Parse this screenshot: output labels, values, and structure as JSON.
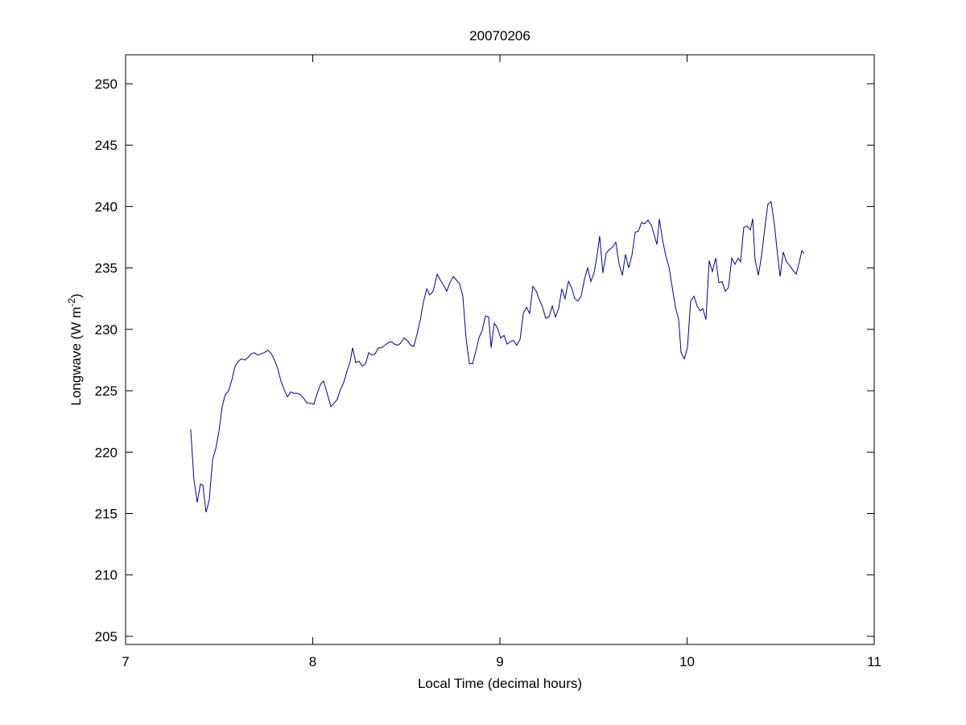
{
  "chart_data": {
    "type": "line",
    "title": "20070206",
    "xlabel": "Local Time (decimal hours)",
    "ylabel": {
      "text": "Longwave (W m",
      "superscript": "-2",
      "suffix": ")"
    },
    "xlim": [
      7,
      11
    ],
    "xticks": [
      7,
      8,
      9,
      10,
      11
    ],
    "ylim": [
      204.34,
      252.36
    ],
    "yticks": [
      205,
      210,
      215,
      220,
      225,
      230,
      235,
      240,
      245,
      250
    ],
    "grid": false,
    "series": [
      {
        "color": "#0000a0",
        "x": [
          7.348,
          7.365,
          7.383,
          7.4,
          7.413,
          7.43,
          7.447,
          7.465,
          7.482,
          7.499,
          7.516,
          7.533,
          7.551,
          7.568,
          7.585,
          7.602,
          7.619,
          7.637,
          7.654,
          7.671,
          7.688,
          7.705,
          7.723,
          7.74,
          7.761,
          7.779,
          7.796,
          7.813,
          7.83,
          7.847,
          7.865,
          7.882,
          7.899,
          7.916,
          7.933,
          7.951,
          7.968,
          7.989,
          8.006,
          8.024,
          8.041,
          8.058,
          8.075,
          8.097,
          8.114,
          8.131,
          8.148,
          8.166,
          8.183,
          8.2,
          8.213,
          8.23,
          8.247,
          8.265,
          8.282,
          8.299,
          8.316,
          8.333,
          8.351,
          8.368,
          8.385,
          8.402,
          8.419,
          8.437,
          8.454,
          8.471,
          8.488,
          8.505,
          8.523,
          8.54,
          8.557,
          8.574,
          8.591,
          8.609,
          8.626,
          8.643,
          8.665,
          8.682,
          8.699,
          8.716,
          8.733,
          8.751,
          8.768,
          8.785,
          8.802,
          8.819,
          8.837,
          8.854,
          8.871,
          8.888,
          8.905,
          8.923,
          8.94,
          8.953,
          8.97,
          8.987,
          9.004,
          9.022,
          9.039,
          9.056,
          9.073,
          9.09,
          9.108,
          9.125,
          9.142,
          9.159,
          9.176,
          9.194,
          9.211,
          9.228,
          9.245,
          9.262,
          9.28,
          9.297,
          9.314,
          9.331,
          9.348,
          9.366,
          9.383,
          9.4,
          9.417,
          9.434,
          9.452,
          9.469,
          9.486,
          9.503,
          9.52,
          9.533,
          9.55,
          9.568,
          9.585,
          9.602,
          9.619,
          9.637,
          9.654,
          9.671,
          9.688,
          9.705,
          9.723,
          9.74,
          9.757,
          9.774,
          9.791,
          9.809,
          9.826,
          9.839,
          9.852,
          9.869,
          9.886,
          9.903,
          9.92,
          9.938,
          9.955,
          9.968,
          9.985,
          10.002,
          10.019,
          10.037,
          10.054,
          10.071,
          10.084,
          10.101,
          10.118,
          10.135,
          10.153,
          10.17,
          10.187,
          10.204,
          10.221,
          10.239,
          10.256,
          10.273,
          10.286,
          10.303,
          10.32,
          10.338,
          10.351,
          10.363,
          10.381,
          10.398,
          10.415,
          10.432,
          10.449,
          10.467,
          10.484,
          10.497,
          10.514,
          10.531,
          10.548,
          10.566,
          10.583,
          10.6,
          10.613,
          10.626
        ],
        "values": [
          221.85,
          217.8,
          215.9,
          217.4,
          217.3,
          215.1,
          216.1,
          219.4,
          220.3,
          221.7,
          223.7,
          224.7,
          225.0,
          225.9,
          227.0,
          227.4,
          227.6,
          227.5,
          227.7,
          228.0,
          228.1,
          227.9,
          228.0,
          228.1,
          228.3,
          228.0,
          227.5,
          226.8,
          225.8,
          225.1,
          224.5,
          224.9,
          224.8,
          224.8,
          224.7,
          224.4,
          224.0,
          224.0,
          223.9,
          224.8,
          225.5,
          225.8,
          224.9,
          223.7,
          224.0,
          224.3,
          225.1,
          225.7,
          226.6,
          227.4,
          228.5,
          227.3,
          227.4,
          227.0,
          227.2,
          228.1,
          227.9,
          228.0,
          228.5,
          228.5,
          228.7,
          228.9,
          229.0,
          228.8,
          228.7,
          228.9,
          229.3,
          229.1,
          228.7,
          228.6,
          229.6,
          230.7,
          232.2,
          233.3,
          232.8,
          233.1,
          234.5,
          234.0,
          233.6,
          233.1,
          233.8,
          234.3,
          234.0,
          233.7,
          232.7,
          229.3,
          227.2,
          227.2,
          228.2,
          229.3,
          229.9,
          231.1,
          231.0,
          228.5,
          230.5,
          230.1,
          229.3,
          229.5,
          228.8,
          229.0,
          229.1,
          228.7,
          229.2,
          231.3,
          231.8,
          231.3,
          233.5,
          233.1,
          232.4,
          231.8,
          230.9,
          231.0,
          231.9,
          231.0,
          231.7,
          233.3,
          232.5,
          233.9,
          233.4,
          232.5,
          232.3,
          232.7,
          234.1,
          235.0,
          233.9,
          234.6,
          236.1,
          237.6,
          234.6,
          236.2,
          236.5,
          236.7,
          237.1,
          235.3,
          234.4,
          236.1,
          235.0,
          236.0,
          237.9,
          238.0,
          238.7,
          238.6,
          238.9,
          238.5,
          237.6,
          236.9,
          239.0,
          237.3,
          236.0,
          235.1,
          233.5,
          231.8,
          230.8,
          228.1,
          227.6,
          228.5,
          232.3,
          232.7,
          231.9,
          231.5,
          231.7,
          230.8,
          235.6,
          234.7,
          235.8,
          233.8,
          233.9,
          233.1,
          233.4,
          235.8,
          235.3,
          235.8,
          235.5,
          238.3,
          238.4,
          238.1,
          239.0,
          235.7,
          234.4,
          236.0,
          238.2,
          240.2,
          240.4,
          238.5,
          236.0,
          234.3,
          236.3,
          235.5,
          235.2,
          234.8,
          234.5,
          235.5,
          236.4,
          236.2
        ]
      }
    ]
  }
}
